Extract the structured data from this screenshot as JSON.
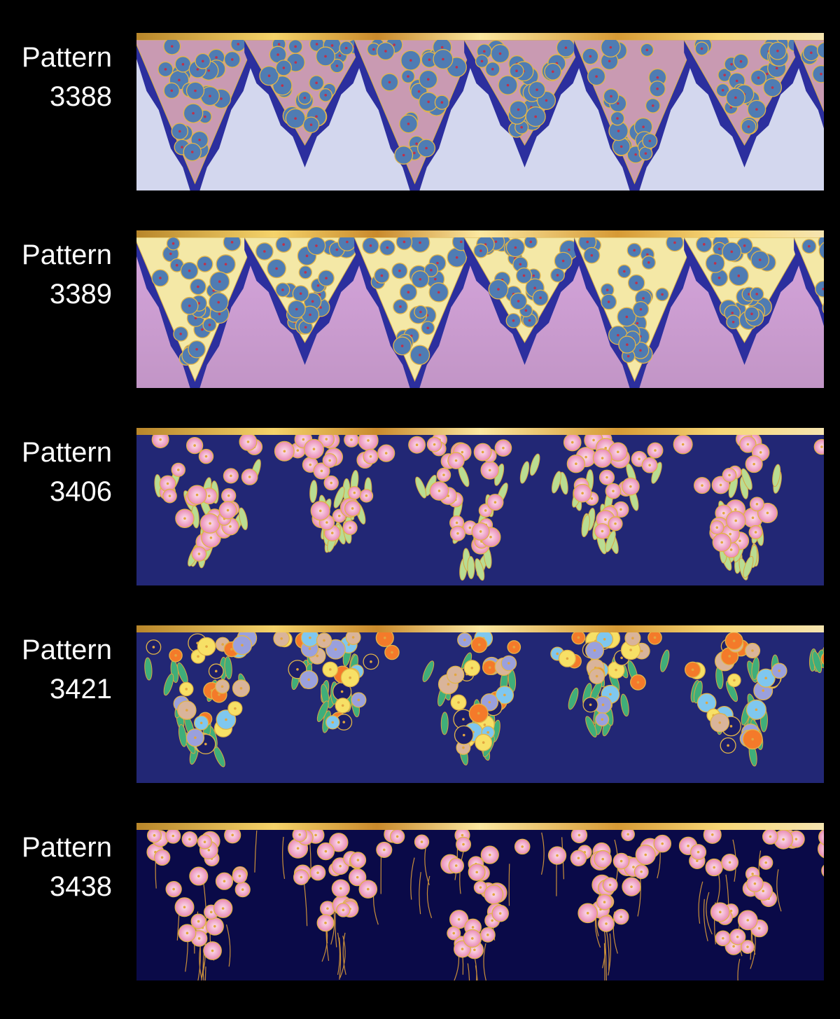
{
  "patterns": [
    {
      "label": "Pattern",
      "number": "3388"
    },
    {
      "label": "Pattern",
      "number": "3389"
    },
    {
      "label": "Pattern",
      "number": "3406"
    },
    {
      "label": "Pattern",
      "number": "3421"
    },
    {
      "label": "Pattern",
      "number": "3438"
    }
  ]
}
